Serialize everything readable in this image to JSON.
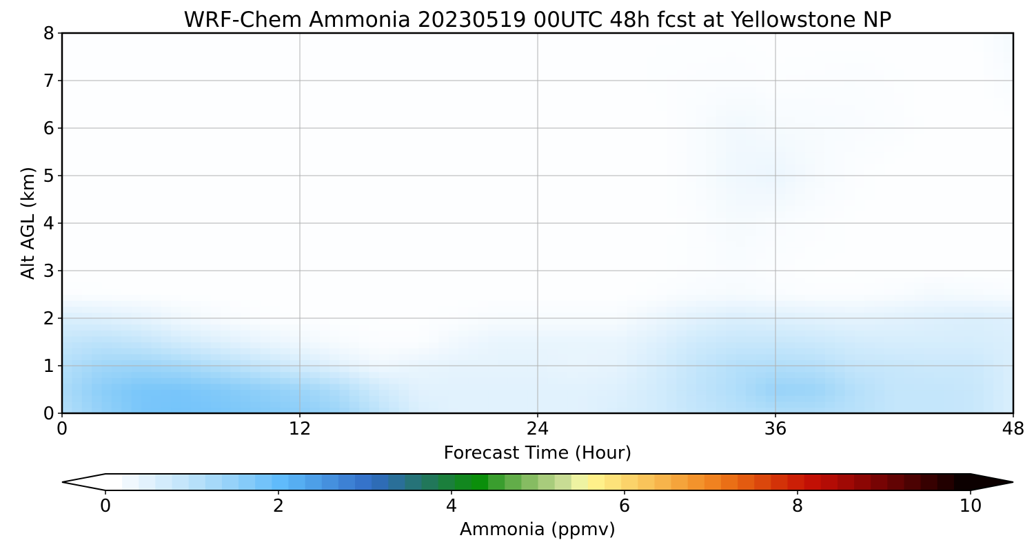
{
  "chart_data": {
    "type": "heatmap",
    "title": "WRF-Chem Ammonia  20230519 00UTC 48h fcst at Yellowstone NP",
    "xlabel": "Forecast Time (Hour)",
    "ylabel": "Alt AGL (km)",
    "xlim": [
      0,
      48
    ],
    "ylim": [
      0,
      8
    ],
    "x_ticks": [
      "0",
      "12",
      "24",
      "36",
      "48"
    ],
    "y_ticks": [
      "0",
      "1",
      "2",
      "3",
      "4",
      "5",
      "6",
      "7",
      "8"
    ],
    "grid": true,
    "colorbar": {
      "label": "Ammonia  (ppmv)",
      "range": [
        0,
        10
      ],
      "ticks": [
        "0",
        "2",
        "4",
        "6",
        "8",
        "10"
      ],
      "extend": "both",
      "colors": [
        "#ffffff",
        "#f0f8fe",
        "#e2f2fd",
        "#d3ecfc",
        "#c5e6fb",
        "#b6e0fa",
        "#a6d9f9",
        "#96d2f9",
        "#85cbf9",
        "#73c3fa",
        "#60bbfb",
        "#56aef2",
        "#4d9fe8",
        "#4590de",
        "#3d81d4",
        "#3573ca",
        "#2e6cb6",
        "#2a6f98",
        "#267378",
        "#21775a",
        "#1b7f3c",
        "#12871f",
        "#0b8f0b",
        "#3a9e2e",
        "#62ad49",
        "#86bc62",
        "#a8cc7c",
        "#c8dc94",
        "#eef3a2",
        "#fff08a",
        "#fde27a",
        "#fbd36a",
        "#f9c45a",
        "#f7b44b",
        "#f5a43b",
        "#f3932c",
        "#f08220",
        "#ea6f16",
        "#e35b10",
        "#db470c",
        "#d33208",
        "#cc1f06",
        "#c21005",
        "#b30c05",
        "#a00905",
        "#8c0604",
        "#770404",
        "#620303",
        "#4c0202",
        "#370101",
        "#220000",
        "#0c0000"
      ]
    },
    "series": [
      {
        "x": [
          0,
          2,
          4,
          6,
          8,
          10,
          12,
          14,
          16,
          18,
          20,
          22,
          24,
          26,
          28,
          30,
          32,
          34,
          36,
          38,
          40,
          42,
          44,
          46,
          48
        ],
        "y": [
          0,
          0.5,
          1,
          1.5,
          2,
          2.5,
          3,
          4,
          5,
          6,
          7,
          8
        ],
        "values": [
          [
            1.0,
            1.4,
            1.7,
            1.75,
            1.7,
            1.6,
            1.5,
            1.3,
            0.9,
            0.5,
            0.4,
            0.4,
            0.4,
            0.4,
            0.5,
            0.6,
            0.8,
            0.95,
            1.05,
            1.05,
            0.95,
            0.8,
            0.8,
            0.75,
            0.5
          ],
          [
            1.1,
            1.5,
            1.7,
            1.7,
            1.6,
            1.45,
            1.3,
            1.05,
            0.65,
            0.4,
            0.4,
            0.4,
            0.4,
            0.4,
            0.45,
            0.6,
            0.85,
            1.05,
            1.35,
            1.3,
            1.0,
            0.8,
            0.8,
            0.75,
            0.5
          ],
          [
            1.0,
            1.25,
            1.3,
            1.2,
            1.0,
            0.8,
            0.6,
            0.4,
            0.2,
            0.3,
            0.35,
            0.35,
            0.35,
            0.3,
            0.35,
            0.55,
            0.8,
            1.0,
            1.05,
            1.0,
            0.8,
            0.75,
            0.7,
            0.7,
            0.5
          ],
          [
            0.8,
            0.9,
            0.8,
            0.6,
            0.45,
            0.3,
            0.2,
            0.1,
            0.05,
            0.05,
            0.2,
            0.3,
            0.3,
            0.3,
            0.3,
            0.45,
            0.65,
            0.75,
            0.75,
            0.7,
            0.6,
            0.55,
            0.55,
            0.55,
            0.5
          ],
          [
            0.5,
            0.45,
            0.35,
            0.2,
            0.1,
            0.05,
            0.03,
            0.03,
            0.03,
            0.03,
            0.05,
            0.1,
            0.1,
            0.1,
            0.1,
            0.25,
            0.4,
            0.5,
            0.45,
            0.4,
            0.35,
            0.4,
            0.45,
            0.5,
            0.45
          ],
          [
            0.05,
            0.04,
            0.03,
            0.02,
            0.02,
            0.02,
            0.02,
            0.02,
            0.02,
            0.02,
            0.02,
            0.02,
            0.02,
            0.02,
            0.02,
            0.05,
            0.1,
            0.12,
            0.08,
            0.05,
            0.05,
            0.08,
            0.15,
            0.12,
            0.08
          ],
          [
            0.02,
            0.02,
            0.02,
            0.02,
            0.02,
            0.02,
            0.02,
            0.02,
            0.02,
            0.02,
            0.02,
            0.02,
            0.02,
            0.02,
            0.02,
            0.03,
            0.05,
            0.08,
            0.05,
            0.03,
            0.03,
            0.03,
            0.03,
            0.03,
            0.03
          ],
          [
            0.02,
            0.02,
            0.02,
            0.02,
            0.02,
            0.02,
            0.02,
            0.02,
            0.02,
            0.02,
            0.02,
            0.02,
            0.02,
            0.02,
            0.02,
            0.02,
            0.05,
            0.12,
            0.08,
            0.05,
            0.03,
            0.02,
            0.02,
            0.02,
            0.02
          ],
          [
            0.02,
            0.02,
            0.02,
            0.02,
            0.02,
            0.02,
            0.02,
            0.02,
            0.02,
            0.02,
            0.02,
            0.02,
            0.02,
            0.02,
            0.02,
            0.02,
            0.08,
            0.2,
            0.25,
            0.12,
            0.05,
            0.02,
            0.02,
            0.02,
            0.02
          ],
          [
            0.02,
            0.02,
            0.02,
            0.02,
            0.02,
            0.02,
            0.02,
            0.02,
            0.02,
            0.02,
            0.02,
            0.02,
            0.02,
            0.02,
            0.02,
            0.02,
            0.08,
            0.18,
            0.12,
            0.1,
            0.08,
            0.06,
            0.02,
            0.02,
            0.02
          ],
          [
            0.02,
            0.02,
            0.02,
            0.02,
            0.02,
            0.02,
            0.02,
            0.02,
            0.02,
            0.02,
            0.02,
            0.02,
            0.02,
            0.02,
            0.02,
            0.04,
            0.05,
            0.06,
            0.04,
            0.05,
            0.06,
            0.04,
            0.02,
            0.02,
            0.08
          ],
          [
            0.02,
            0.02,
            0.02,
            0.02,
            0.02,
            0.02,
            0.02,
            0.02,
            0.02,
            0.02,
            0.02,
            0.02,
            0.02,
            0.02,
            0.02,
            0.03,
            0.03,
            0.03,
            0.02,
            0.02,
            0.02,
            0.02,
            0.02,
            0.02,
            0.15
          ]
        ]
      }
    ]
  }
}
